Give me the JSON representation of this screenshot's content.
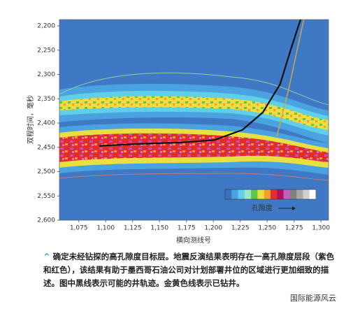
{
  "chart_data": {
    "type": "seismic",
    "xlabel": "横向测线号",
    "ylabel": "双程时间，毫秒",
    "xlim": [
      1057,
      1307
    ],
    "ylim": [
      2187,
      2600
    ],
    "y_inverted": true,
    "xticks": [
      {
        "value": 1075,
        "label": "1,075"
      },
      {
        "value": 1100,
        "label": "1,100"
      },
      {
        "value": 1125,
        "label": "1,125"
      },
      {
        "value": 1150,
        "label": "1,150"
      },
      {
        "value": 1175,
        "label": "1,175"
      },
      {
        "value": 1200,
        "label": "1,200"
      },
      {
        "value": 1225,
        "label": "1,225"
      },
      {
        "value": 1250,
        "label": "1,250"
      },
      {
        "value": 1275,
        "label": "1,275"
      },
      {
        "value": 1300,
        "label": "1,300"
      }
    ],
    "yticks": [
      {
        "value": 2200,
        "label": "2,200"
      },
      {
        "value": 2250,
        "label": "2,250"
      },
      {
        "value": 2300,
        "label": "2,300"
      },
      {
        "value": 2350,
        "label": "2,350"
      },
      {
        "value": 2400,
        "label": "2,400"
      },
      {
        "value": 2450,
        "label": "2,450"
      },
      {
        "value": 2500,
        "label": "2,500"
      },
      {
        "value": 2550,
        "label": "2,550"
      },
      {
        "value": 2600,
        "label": "2,600"
      }
    ],
    "series": [
      {
        "color": "#111111",
        "x": [
          1094,
          1130,
          1170,
          1201,
          1227,
          1246,
          1262,
          1272,
          1281
        ],
        "y": [
          2447,
          2443,
          2440,
          2435,
          2414,
          2378,
          2320,
          2248,
          2187
        ]
      },
      {
        "color": "#c9a94a",
        "x": [
          1259,
          1270,
          1284
        ],
        "y": [
          2428,
          2330,
          2187
        ]
      }
    ],
    "colorbar_label": "孔隙度",
    "colorbar_colors": [
      "#3b6fc0",
      "#4aa3e0",
      "#5fd0e8",
      "#9be8c8",
      "#5cc84a",
      "#e8e040",
      "#f0a030",
      "#e03030",
      "#b01060",
      "#c060c0",
      "#808080",
      "#a8a8a8",
      "#d0d0d0",
      "#ffffff"
    ],
    "caption": "确定未经钻探的高孔隙度目标层。地震反演结果表明存在一高孔隙度层段（紫色和红色），该结果有助于墨西哥石油公司对计划部署井位的区域进行更加细致的描述。图中黑线表示可能的井轨迹。金黄色线表示已钻井。",
    "watermark": "国际能源风云"
  }
}
